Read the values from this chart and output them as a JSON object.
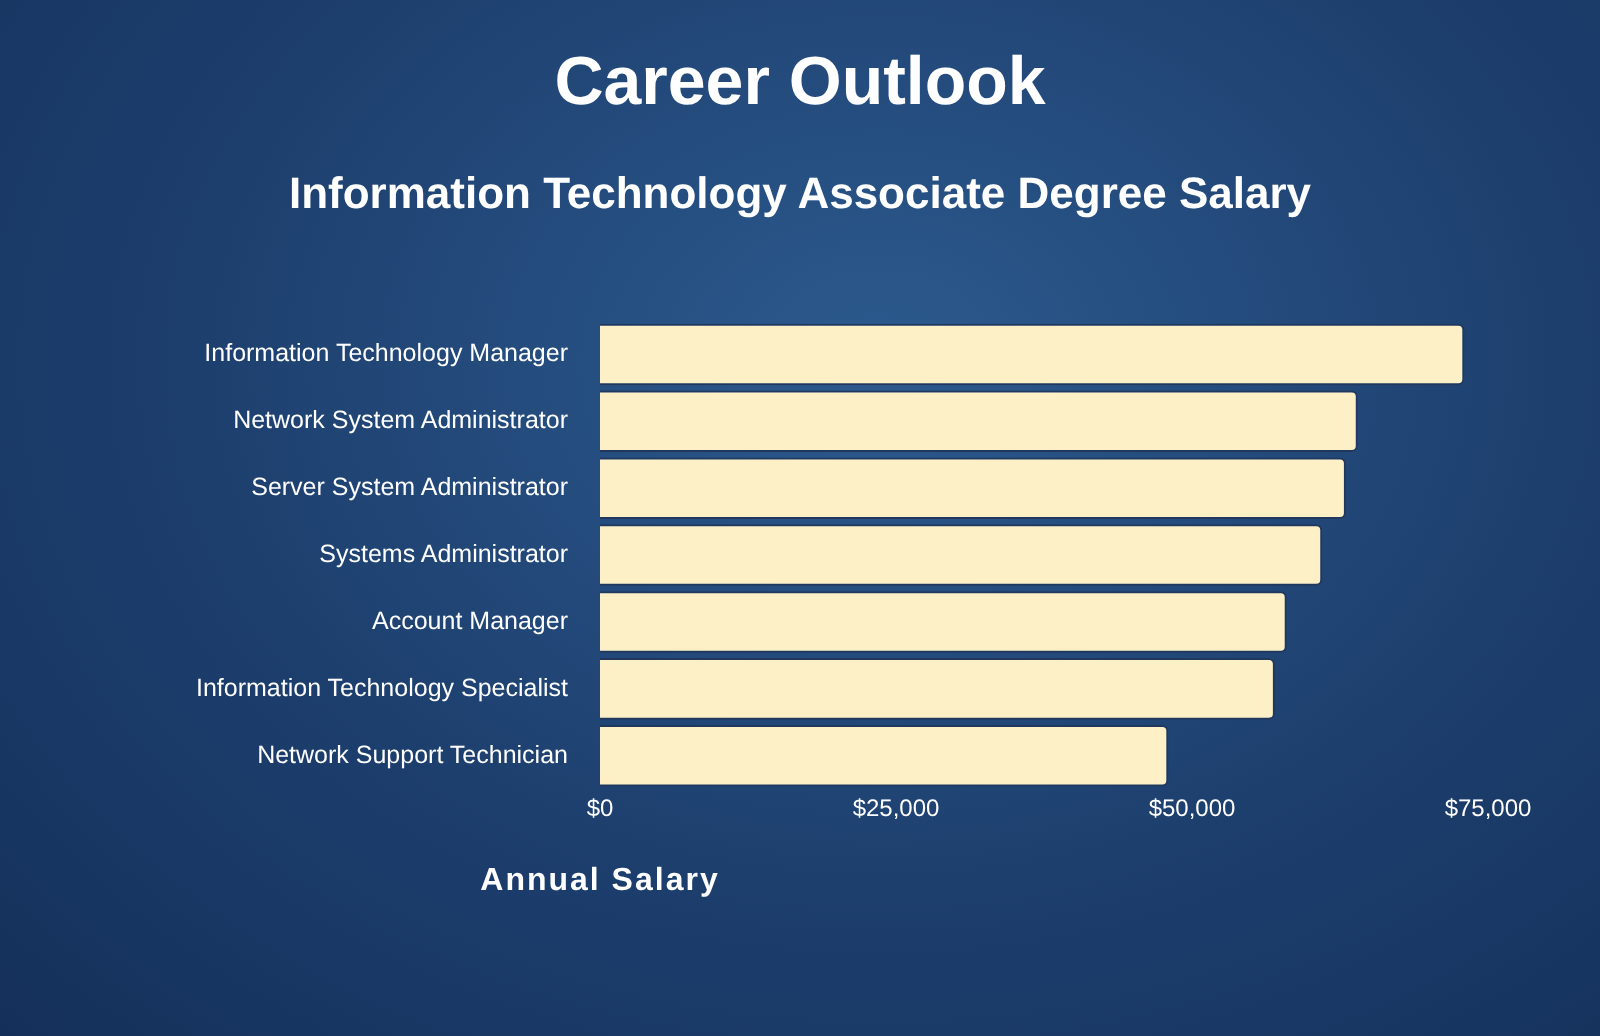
{
  "chart_data": {
    "type": "bar",
    "orientation": "horizontal",
    "title": "Career Outlook",
    "subtitle": "Information Technology Associate Degree Salary",
    "xlabel": "Annual Salary",
    "categories": [
      "Information Technology Manager",
      "Network System Administrator",
      "Server System Administrator",
      "Systems Administrator",
      "Account Manager",
      "Information Technology Specialist",
      "Network Support Technician"
    ],
    "values": [
      73000,
      64000,
      63000,
      61000,
      58000,
      57000,
      48000
    ],
    "color": "#fdf0c6",
    "xlim": [
      0,
      75000
    ],
    "xticks": [
      {
        "value": 0,
        "label": "$0"
      },
      {
        "value": 25000,
        "label": "$25,000"
      },
      {
        "value": 50000,
        "label": "$50,000"
      },
      {
        "value": 75000,
        "label": "$75,000"
      }
    ],
    "grid": false,
    "legend": false
  }
}
